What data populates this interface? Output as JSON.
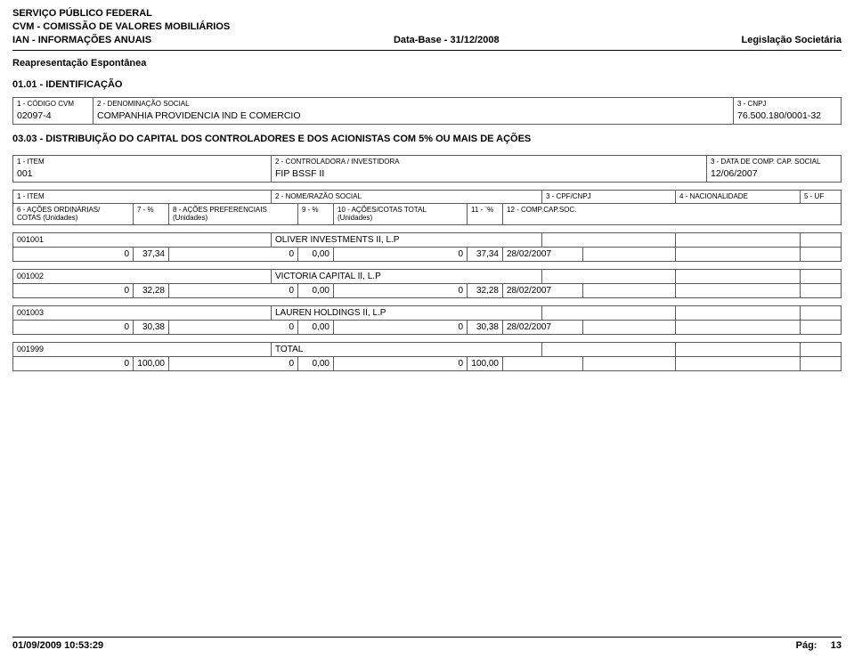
{
  "header": {
    "line1": "SERVIÇO PÚBLICO FEDERAL",
    "line2": "CVM - COMISSÃO DE VALORES MOBILIÁRIOS",
    "line3_left": "IAN - INFORMAÇÕES ANUAIS",
    "line3_mid": "Data-Base - 31/12/2008",
    "line3_right": "Legislação Societária",
    "sub": "Reapresentação Espontânea"
  },
  "section01": {
    "title": "01.01 - IDENTIFICAÇÃO",
    "col1_label": "1 - CÓDIGO CVM",
    "col1_value": "02097-4",
    "col2_label": "2 - DENOMINAÇÃO SOCIAL",
    "col2_value": "COMPANHIA PROVIDENCIA IND E COMERCIO",
    "col3_label": "3 - CNPJ",
    "col3_value": "76.500.180/0001-32"
  },
  "section03": {
    "title": "03.03 - DISTRIBUIÇÃO DO CAPITAL DOS CONTROLADORES E DOS ACIONISTAS COM 5% OU MAIS DE AÇÕES",
    "ctrl": {
      "col1_label": "1 - ITEM",
      "col1_value": "001",
      "col2_label": "2 - CONTROLADORA / INVESTIDORA",
      "col2_value": "FIP BSSF II",
      "col3_label": "3 - DATA DE COMP. CAP. SOCIAL",
      "col3_value": "12/06/2007"
    },
    "sh_head": {
      "c1": "1 - ITEM",
      "c2": "2 - NOME/RAZÃO SOCIAL",
      "c3": "3 - CPF/CNPJ",
      "c4": "4 - NACIONALIDADE",
      "c5": "5 - UF"
    },
    "cols_head": {
      "c6a": "6 - AÇÕES ORDINÁRIAS/",
      "c6b": "COTAS      (Unidades)",
      "c7": "7 - %",
      "c8a": "8 - AÇÕES PREFERENCIAIS",
      "c8b": "(Unidades)",
      "c9": "9 - %",
      "c10a": "10 - AÇÕES/COTAS TOTAL",
      "c10b": "(Unidades)",
      "c11": "11 - ¨%",
      "c12": "12 - COMP.CAP.SOC."
    },
    "rows": [
      {
        "item": "001001",
        "name": "OLIVER INVESTMENTS II, L.P",
        "ord": "0",
        "ord_pct": "37,34",
        "pref": "0",
        "pref_pct": "0,00",
        "total": "0",
        "total_pct": "37,34",
        "date": "28/02/2007"
      },
      {
        "item": "001002",
        "name": "VICTORIA CAPITAL II, L.P",
        "ord": "0",
        "ord_pct": "32,28",
        "pref": "0",
        "pref_pct": "0,00",
        "total": "0",
        "total_pct": "32,28",
        "date": "28/02/2007"
      },
      {
        "item": "001003",
        "name": "LAUREN HOLDINGS II, L.P",
        "ord": "0",
        "ord_pct": "30,38",
        "pref": "0",
        "pref_pct": "0,00",
        "total": "0",
        "total_pct": "30,38",
        "date": "28/02/2007"
      },
      {
        "item": "001999",
        "name": "TOTAL",
        "ord": "0",
        "ord_pct": "100,00",
        "pref": "0",
        "pref_pct": "0,00",
        "total": "0",
        "total_pct": "100,00",
        "date": ""
      }
    ]
  },
  "footer": {
    "left": "01/09/2009 10:53:29",
    "right_label": "Pág:",
    "right_value": "13"
  }
}
